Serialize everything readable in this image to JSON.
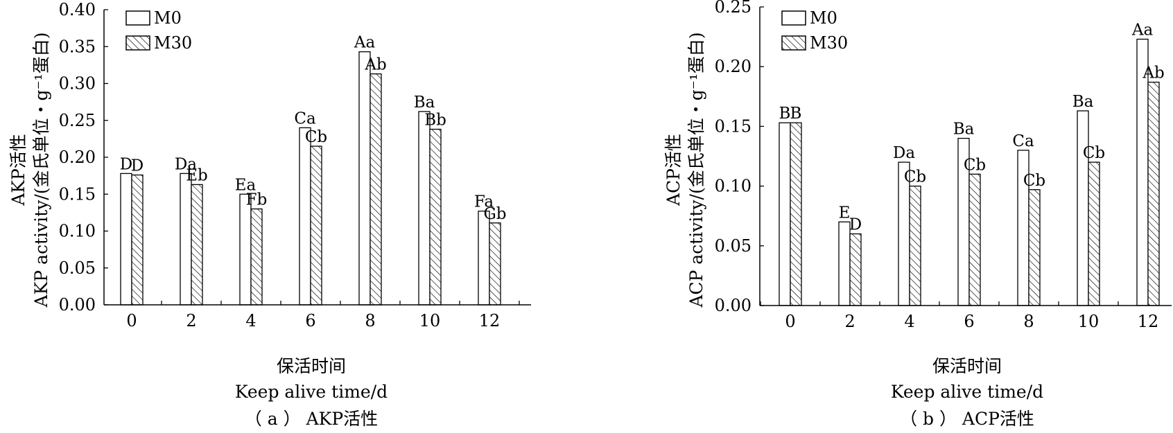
{
  "chart_data": [
    {
      "type": "bar",
      "caption": "（ a ） AKP活性",
      "ylabel_cn": "AKP活性",
      "ylabel_en": "AKP activity/(金氏单位・g⁻¹蛋白)",
      "xlabel_cn": "保活时间",
      "xlabel_en": "Keep alive time/d",
      "categories": [
        "0",
        "2",
        "4",
        "6",
        "8",
        "10",
        "12"
      ],
      "ylim": [
        0,
        0.4
      ],
      "yticks": [
        "0.00",
        "0.05",
        "0.10",
        "0.15",
        "0.20",
        "0.25",
        "0.30",
        "0.35",
        "0.40"
      ],
      "legend": [
        "M0",
        "M30"
      ],
      "legend_position": "top-left",
      "series": [
        {
          "name": "M0",
          "values": [
            0.178,
            0.178,
            0.15,
            0.24,
            0.343,
            0.262,
            0.127
          ],
          "labels": [
            "D",
            "Da",
            "Ea",
            "Ca",
            "Aa",
            "Ba",
            "Fa"
          ]
        },
        {
          "name": "M30",
          "values": [
            0.176,
            0.163,
            0.13,
            0.215,
            0.313,
            0.238,
            0.111
          ],
          "labels": [
            "D",
            "Eb",
            "Fb",
            "Cb",
            "Ab",
            "Bb",
            "Gb"
          ]
        }
      ]
    },
    {
      "type": "bar",
      "caption": "（ b ） ACP活性",
      "ylabel_cn": "ACP活性",
      "ylabel_en": "ACP activity/(金氏单位・g⁻¹蛋白)",
      "xlabel_cn": "保活时间",
      "xlabel_en": "Keep alive time/d",
      "categories": [
        "0",
        "2",
        "4",
        "6",
        "8",
        "10",
        "12"
      ],
      "ylim": [
        0,
        0.25
      ],
      "yticks": [
        "0.00",
        "0.05",
        "0.10",
        "0.15",
        "0.20",
        "0.25"
      ],
      "legend": [
        "M0",
        "M30"
      ],
      "legend_position": "top-left",
      "series": [
        {
          "name": "M0",
          "values": [
            0.153,
            0.07,
            0.12,
            0.14,
            0.13,
            0.163,
            0.223
          ],
          "labels": [
            "B",
            "E",
            "Da",
            "Ba",
            "Ca",
            "Ba",
            "Aa"
          ]
        },
        {
          "name": "M30",
          "values": [
            0.153,
            0.06,
            0.1,
            0.11,
            0.097,
            0.12,
            0.187
          ],
          "labels": [
            "B",
            "D",
            "Cb",
            "Cb",
            "Cb",
            "Cb",
            "Ab"
          ]
        }
      ]
    }
  ]
}
